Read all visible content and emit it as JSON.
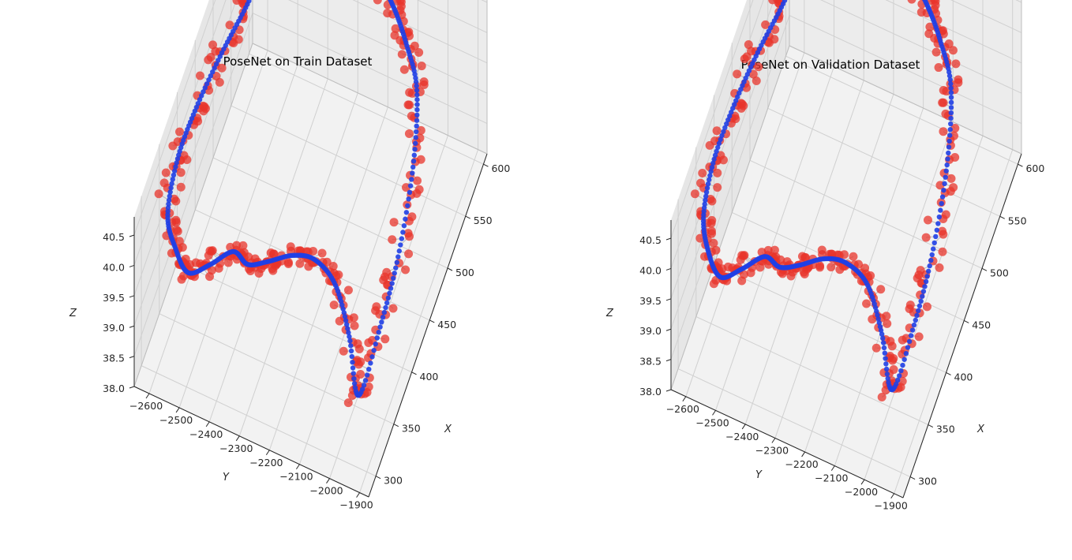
{
  "chart_data": [
    {
      "type": "scatter",
      "projection": "3d",
      "title": "PoseNet on Train Dataset",
      "xlabel": "X",
      "ylabel": "Y",
      "zlabel": "Z",
      "xlim": [
        280,
        610
      ],
      "ylim": [
        -2650,
        -1870
      ],
      "zlim": [
        38.0,
        40.8
      ],
      "xticks": [
        "300",
        "350",
        "400",
        "450",
        "500",
        "550",
        "600"
      ],
      "yticks": [
        "−2600",
        "−2500",
        "−2400",
        "−2300",
        "−2200",
        "−2100",
        "−2000",
        "−1900"
      ],
      "zticks": [
        "38.0",
        "38.5",
        "39.0",
        "39.5",
        "40.0",
        "40.5"
      ],
      "grid": true,
      "colors": {
        "ground_truth": "#1f3fe6",
        "prediction": "#e8342b",
        "error_lines": "#b4b4b4"
      },
      "trajectory_xy": [
        [
          340,
          -1975
        ],
        [
          360,
          -2030
        ],
        [
          372,
          -2090
        ],
        [
          365,
          -2150
        ],
        [
          345,
          -2200
        ],
        [
          325,
          -2260
        ],
        [
          320,
          -2320
        ],
        [
          330,
          -2380
        ],
        [
          315,
          -2440
        ],
        [
          305,
          -2500
        ],
        [
          320,
          -2560
        ],
        [
          340,
          -2610
        ],
        [
          380,
          -2625
        ],
        [
          420,
          -2610
        ],
        [
          470,
          -2585
        ],
        [
          520,
          -2560
        ],
        [
          560,
          -2540
        ],
        [
          580,
          -2490
        ],
        [
          575,
          -2440
        ],
        [
          585,
          -2380
        ],
        [
          590,
          -2320
        ],
        [
          580,
          -2260
        ],
        [
          585,
          -2200
        ],
        [
          575,
          -2140
        ],
        [
          560,
          -2080
        ],
        [
          540,
          -2020
        ],
        [
          500,
          -1985
        ],
        [
          450,
          -1975
        ],
        [
          400,
          -1975
        ]
      ],
      "z_values": [
        38.4,
        38.9,
        39.4,
        39.8,
        40.1,
        40.2,
        40.1,
        40.0,
        39.9,
        39.8,
        39.8,
        39.9,
        40.1,
        40.3,
        40.4,
        40.4,
        40.5,
        40.5,
        40.6,
        40.6,
        40.7,
        40.6,
        40.5,
        40.4,
        40.2,
        39.9,
        39.4,
        38.8,
        38.5
      ]
    },
    {
      "type": "scatter",
      "projection": "3d",
      "title": "PoseNet on Validation Dataset",
      "xlabel": "X",
      "ylabel": "Y",
      "zlabel": "Z",
      "xlim": [
        280,
        610
      ],
      "ylim": [
        -2650,
        -1870
      ],
      "zlim": [
        38.0,
        40.8
      ],
      "xticks": [
        "300",
        "350",
        "400",
        "450",
        "500",
        "550",
        "600"
      ],
      "yticks": [
        "−2600",
        "−2500",
        "−2400",
        "−2300",
        "−2200",
        "−2100",
        "−2000",
        "−1900"
      ],
      "zticks": [
        "38.0",
        "38.5",
        "39.0",
        "39.5",
        "40.0",
        "40.5"
      ],
      "grid": true,
      "colors": {
        "ground_truth": "#1f3fe6",
        "prediction": "#e8342b",
        "error_lines": "#b4b4b4"
      },
      "trajectory_xy": [
        [
          345,
          -1985
        ],
        [
          362,
          -2040
        ],
        [
          372,
          -2100
        ],
        [
          362,
          -2160
        ],
        [
          342,
          -2210
        ],
        [
          322,
          -2270
        ],
        [
          318,
          -2330
        ],
        [
          326,
          -2390
        ],
        [
          312,
          -2450
        ],
        [
          302,
          -2510
        ],
        [
          318,
          -2570
        ],
        [
          342,
          -2615
        ],
        [
          382,
          -2628
        ],
        [
          425,
          -2612
        ],
        [
          472,
          -2590
        ],
        [
          522,
          -2565
        ],
        [
          562,
          -2545
        ],
        [
          582,
          -2495
        ],
        [
          578,
          -2445
        ],
        [
          588,
          -2385
        ],
        [
          592,
          -2325
        ],
        [
          582,
          -2265
        ],
        [
          586,
          -2205
        ],
        [
          576,
          -2145
        ],
        [
          562,
          -2085
        ],
        [
          542,
          -2025
        ],
        [
          502,
          -1990
        ],
        [
          452,
          -1980
        ],
        [
          402,
          -1980
        ]
      ],
      "z_values": [
        38.4,
        38.9,
        39.4,
        39.8,
        40.1,
        40.2,
        40.1,
        40.0,
        39.9,
        39.8,
        39.8,
        39.9,
        40.1,
        40.3,
        40.4,
        40.4,
        40.5,
        40.5,
        40.6,
        40.6,
        40.7,
        40.6,
        40.5,
        40.4,
        40.2,
        39.9,
        39.4,
        38.8,
        38.5
      ]
    }
  ]
}
